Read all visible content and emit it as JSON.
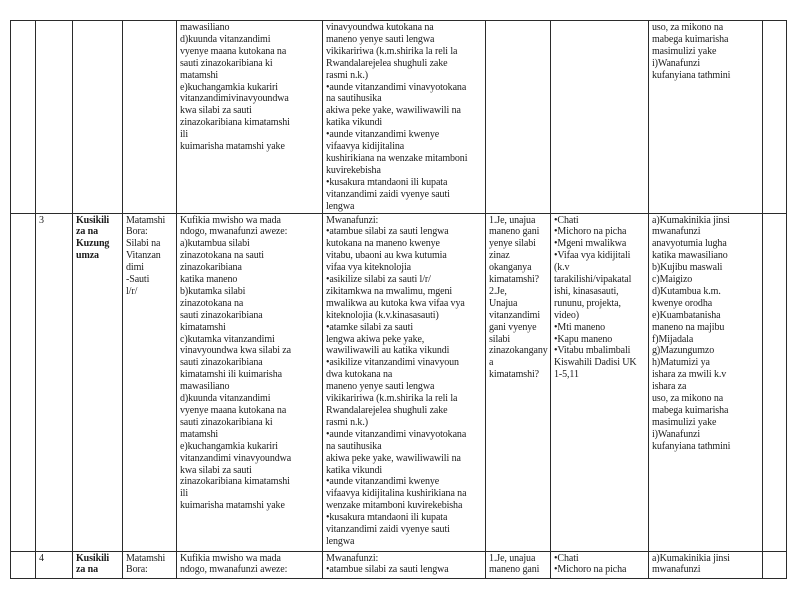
{
  "table": {
    "rows": [
      {
        "cells": [
          "",
          "",
          "",
          "",
          "mawasiliano\nd)kuunda vitanzandimi\nvyenye maana kutokana na\nsauti zinazokaribiana ki\nmatamshi\ne)kuchangamkia kukariri\nvitanzandimivinavyoundwa\nkwa silabi za sauti\nzinazokaribiana kimatamshi\nili\nkuimarisha matamshi yake",
          "vinavyoundwa kutokana na\nmaneno yenye sauti lengwa\nvikikaririwa (k.m.shirika la reli la\nRwandalarejelea shughuli zake\nrasmi n.k.)\n•aunde vitanzandimi vinavyotokana\nna sautihusika\nakiwa peke yake, wawiliwawili na\nkatika vikundi\n•aunde vitanzandimi kwenye\nvifaavya kidijitalina\nkushirikiana na wenzake mitamboni\nkuvirekebisha\n•kusakura mtandaoni ili kupata\nvitanzandimi zaidi vyenye sauti\nlengwa",
          "",
          "",
          "uso, za mikono na\nmabega kuimarisha\nmasimulizi yake\ni)Wanafunzi\nkufanyiana tathmini",
          ""
        ]
      },
      {
        "cells": [
          "",
          "3",
          "Kusikili\nza na\nKuzung\numza",
          "Matamshi\nBora:\nSilabi na\nVitanzan\ndimi\n-Sauti\nl/r/",
          "Kufikia mwisho wa mada\nndogo, mwanafunzi aweze:\na)kutambua silabi\nzinazotokana na sauti\nzinazokaribiana\nkatika maneno\nb)kutamka silabi\nzinazotokana na\nsauti zinazokaribiana\nkimatamshi\nc)kutamka vitanzandimi\nvinavyoundwa kwa silabi za\nsauti zinazokaribiana\nkimatamshi ili kuimarisha\nmawasiliano\nd)kuunda vitanzandimi\nvyenye maana kutokana na\nsauti zinazokaribiana ki\nmatamshi\ne)kuchangamkia kukariri\nvitanzandimi vinavyoundwa\nkwa silabi za sauti\nzinazokaribiana kimatamshi\nili\nkuimarisha matamshi yake",
          "Mwanafunzi:\n•atambue silabi za sauti lengwa\nkutokana na maneno kwenye\nvitabu, ubaoni au kwa kutumia\nvifaa vya kiteknolojia\n•asikilize silabi za sauti l/r/\nzikitamkwa na mwalimu, mgeni\nmwalikwa au kutoka kwa vifaa vya\nkiteknolojia (k.v.kinasasauti)\n•atamke silabi za sauti\nlengwa akiwa peke yake,\nwawiliwawili au katika vikundi\n•asikilize vitanzandimi vinavyoun\ndwa kutokana na\nmaneno yenye sauti lengwa\nvikikaririwa (k.m.shirika la reli la\nRwandalarejelea shughuli zake\nrasmi n.k.)\n•aunde vitanzandimi vinavyotokana\nna sautihusika\nakiwa peke yake, wawiliwawili na\nkatika vikundi\n•aunde vitanzandimi kwenye\nvifaavya kidijitalina kushirikiana na\nwenzake mitamboni kuvirekebisha\n•kusakura mtandaoni ili kupata\nvitanzandimi zaidi vyenye sauti\nlengwa",
          "1.Je, unajua\nmaneno gani\nyenye silabi\nzinaz\nokanganya\nkimatamshi?\n2.Je,\nUnajua\nvitanzandimi\ngani vyenye\nsilabi\nzinazokangany\na\nkimatamshi?",
          "•Chati\n•Michoro na picha\n•Mgeni mwalikwa\n•Vifaa vya kidijitali\n(k.v\ntarakilishi/vipakatal\nishi, kinasasauti,\nrununu, projekta,\nvideo)\n•Mti maneno\n•Kapu maneno\n•Vitabu mbalimbali\nKiswahili Dadisi UK\n1-5,11",
          "a)Kumakinikia jinsi\nmwanafunzi\nanavyotumia lugha\nkatika mawasiliano\nb)Kujibu maswali\nc)Maigizo\nd)Kutambua k.m.\nkwenye orodha\ne)Kuambatanisha\nmaneno na majibu\nf)Mijadala\ng)Mazungumzo\nh)Matumizi ya\nishara za mwili k.v\nishara za\nuso, za mikono na\nmabega kuimarisha\nmasimulizi yake\ni)Wanafunzi\nkufanyiana tathmini",
          ""
        ]
      },
      {
        "cells": [
          "",
          "4",
          "Kusikili\nza na",
          "Matamshi\nBora:",
          "Kufikia mwisho wa mada\nndogo, mwanafunzi aweze:",
          "Mwanafunzi:\n•atambue silabi za sauti lengwa",
          "1.Je, unajua\nmaneno gani",
          "•Chati\n•Michoro na picha",
          "a)Kumakinikia jinsi\nmwanafunzi",
          ""
        ]
      }
    ]
  }
}
